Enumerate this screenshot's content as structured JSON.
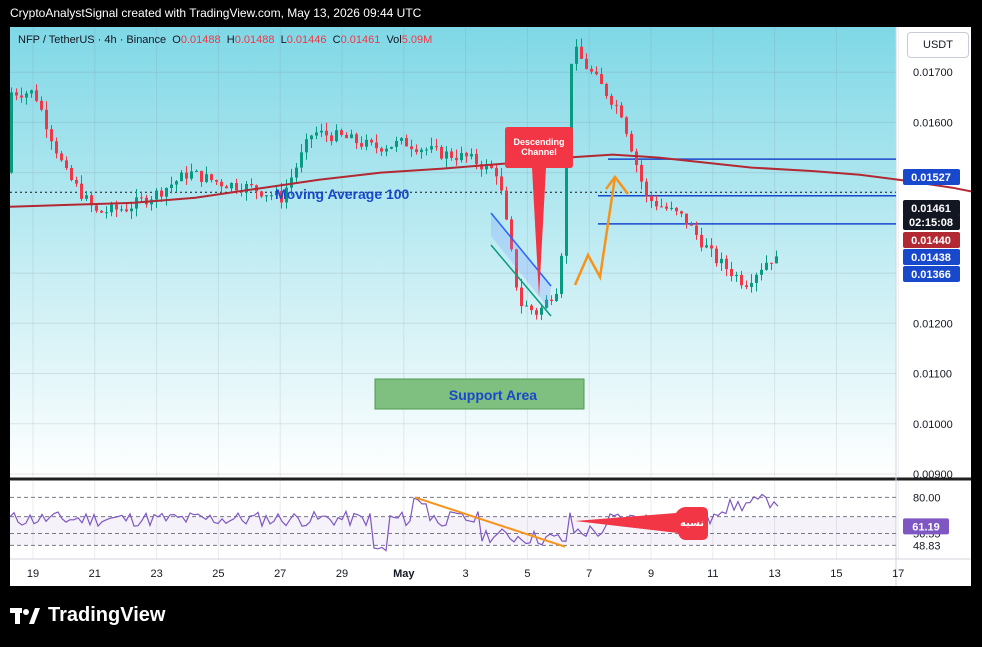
{
  "header": {
    "text": "CryptoAnalystSignal created with TradingView.com, May 13, 2026 09:44 UTC"
  },
  "legend": {
    "symbol": "NFP / TetherUS · 4h · Binance",
    "o_label": "O",
    "o": "0.01488",
    "h_label": "H",
    "h": "0.01488",
    "l_label": "L",
    "l": "0.01446",
    "c_label": "C",
    "c": "0.01461",
    "vol_label": "Vol",
    "vol": "5.09M"
  },
  "currency_button": "USDT",
  "brand": {
    "name": "TradingView"
  },
  "annotations": {
    "ma_label": "Moving Average 100",
    "descending": [
      "Descending",
      "Channel"
    ],
    "support": "Support Area",
    "rsi_tag": "نسبه"
  },
  "chart_data": {
    "type": "candlestick",
    "ylim": [
      0.0089,
      0.0179
    ],
    "y_ticks": [
      "0.01700",
      "0.01600",
      "0.01500",
      "0.01300",
      "0.01200",
      "0.01100",
      "0.01000",
      "0.00900"
    ],
    "x_ticks": [
      "19",
      "21",
      "23",
      "25",
      "27",
      "29",
      "May",
      "3",
      "5",
      "7",
      "9",
      "11",
      "13",
      "15",
      "17"
    ],
    "price_badges": [
      {
        "label": "0.01527",
        "value": 0.01527,
        "color": "#1848cc"
      },
      {
        "label": "0.01461",
        "value": 0.01461,
        "color": "#131722"
      },
      {
        "label": "02:15:08",
        "value": 0.01438,
        "color": "#131722"
      },
      {
        "label": "0.01440",
        "value": 0.0144,
        "color": "#b22833"
      },
      {
        "label": "0.01438",
        "value": 0.01438,
        "color": "#1848cc"
      },
      {
        "label": "0.01366",
        "value": 0.01366,
        "color": "#1848cc"
      }
    ],
    "levels": [
      0.01527,
      0.01438,
      0.01366
    ],
    "last_price": 0.01461,
    "rsi": {
      "ylim": [
        40,
        90
      ],
      "ticks": [
        "80.00",
        "56.55",
        "48.83"
      ],
      "value": "61.19",
      "last": 61.19,
      "levels": [
        80,
        67.5,
        56.55,
        48.83
      ]
    },
    "colors": {
      "up": "#089981",
      "down": "#f23645",
      "ma": "#b22833",
      "level": "#1848cc",
      "rsi": "#7e57c2",
      "arrow": "#f7931a"
    }
  }
}
